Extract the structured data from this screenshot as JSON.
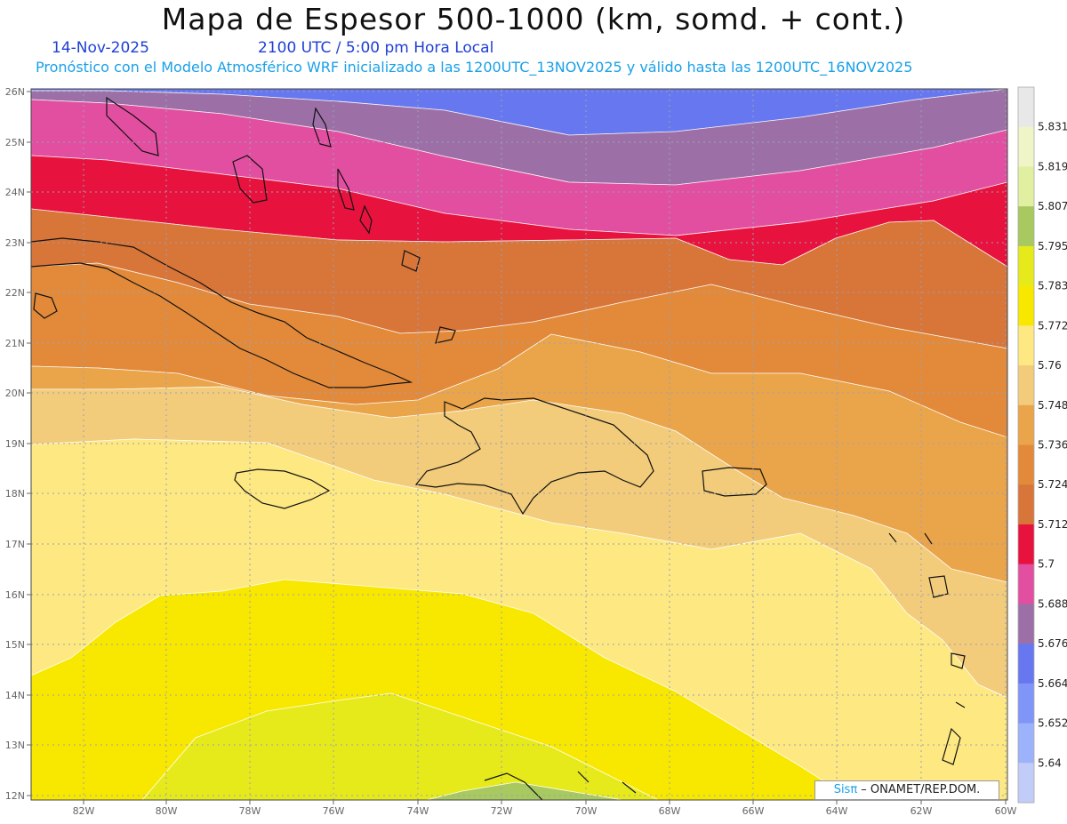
{
  "header": {
    "title": "Mapa de Espesor 500-1000 (km, somd. + cont.)",
    "date": "14-Nov-2025",
    "time": "2100 UTC / 5:00 pm Hora Local",
    "subtitle": "Pronóstico con el Modelo Atmosférico WRF inicializado a las 1200UTC_13NOV2025 y válido hasta las  1200UTC_16NOV2025"
  },
  "axes": {
    "lat_labels": [
      "26N",
      "25N",
      "24N",
      "23N",
      "22N",
      "21N",
      "20N",
      "19N",
      "18N",
      "17N",
      "16N",
      "15N",
      "14N",
      "13N",
      "12N"
    ],
    "lon_labels": [
      "82W",
      "80W",
      "78W",
      "76W",
      "74W",
      "72W",
      "70W",
      "68W",
      "66W",
      "64W",
      "62W",
      "60W"
    ]
  },
  "colorbar": {
    "levels": [
      "5.831",
      "5.819",
      "5.807",
      "5.795",
      "5.783",
      "5.772",
      "5.76",
      "5.748",
      "5.736",
      "5.724",
      "5.712",
      "5.7",
      "5.688",
      "5.676",
      "5.664",
      "5.652",
      "5.64"
    ],
    "colors": [
      "#e8e8e8",
      "#f0f5c8",
      "#e0f0a0",
      "#a8c860",
      "#e6ea1a",
      "#f8e800",
      "#fde882",
      "#f2cc7a",
      "#eaa44a",
      "#e28a3a",
      "#d87538",
      "#e8123e",
      "#e24fa0",
      "#9c70a6",
      "#6677f0",
      "#7f95f8",
      "#9cb2fa",
      "#c2ccf8"
    ]
  },
  "bands": [
    {
      "color": "#6677f0"
    },
    {
      "color": "#9c70a6"
    },
    {
      "color": "#e24fa0"
    },
    {
      "color": "#e8123e"
    },
    {
      "color": "#d87538"
    },
    {
      "color": "#e28a3a"
    },
    {
      "color": "#eaa44a"
    },
    {
      "color": "#f2cc7a"
    },
    {
      "color": "#fde882"
    },
    {
      "color": "#f8e800"
    },
    {
      "color": "#e6ea1a"
    },
    {
      "color": "#a8c860"
    }
  ],
  "credit": {
    "logo": "Sisπ",
    "text": " – ONAMET/REP.DOM."
  }
}
